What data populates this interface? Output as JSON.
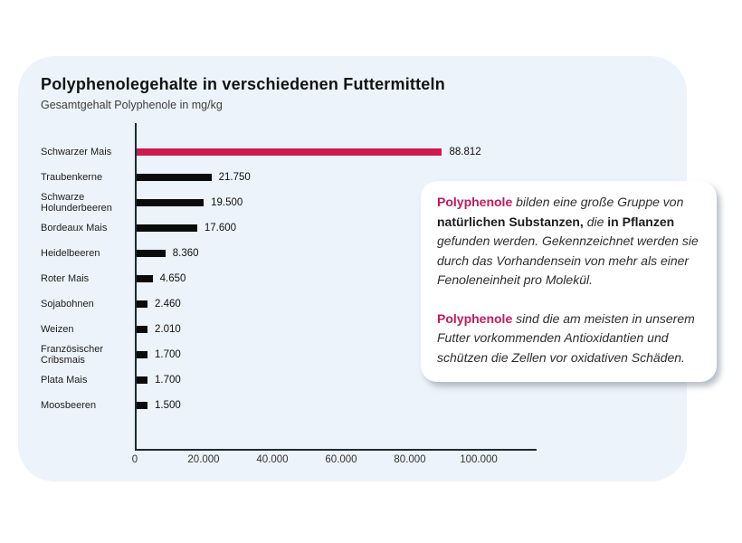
{
  "card": {
    "title": "Polyphenolegehalte in verschiedenen Futtermitteln",
    "subtitle": "Gesamtgehalt Polyphenole in mg/kg"
  },
  "colors": {
    "accent_bar": "#d01a4f",
    "bar": "#0b0b0b",
    "accent_text": "#c31a5e",
    "axis": "#1c2b36",
    "card_background": "#ecf3fa",
    "box_background": "#ffffff"
  },
  "chart_data": {
    "type": "bar",
    "orientation": "horizontal",
    "title": "Polyphenolegehalte in verschiedenen Futtermitteln",
    "subtitle": "Gesamtgehalt Polyphenole in mg/kg",
    "unit": "mg/kg",
    "categories": [
      "Schwarzer Mais",
      "Traubenkerne",
      "Schwarze\nHolunderbeeren",
      "Bordeaux Mais",
      "Heidelbeeren",
      "Roter Mais",
      "Sojabohnen",
      "Weizen",
      "Französischer\nCribsmais",
      "Plata Mais",
      "Moosbeeren"
    ],
    "values": [
      88812,
      21750,
      19500,
      17600,
      8360,
      4650,
      2460,
      2010,
      1700,
      1700,
      1500
    ],
    "value_labels": [
      "88.812",
      "21.750",
      "19.500",
      "17.600",
      "8.360",
      "4.650",
      "2.460",
      "2.010",
      "1.700",
      "1.700",
      "1.500"
    ],
    "highlight_index": 0,
    "xlim": [
      0,
      100000
    ],
    "x_ticks": [
      "0",
      "20.000",
      "40.000",
      "60.000",
      "80.000",
      "100.000"
    ],
    "x_tick_values": [
      0,
      20000,
      40000,
      60000,
      80000,
      100000
    ],
    "grid": false,
    "legend": false
  },
  "info_box": {
    "paragraphs": [
      {
        "segments": [
          {
            "text": "Polyphenole",
            "style": "accent"
          },
          {
            "text": " bilden eine große Gruppe von ",
            "style": "italic"
          },
          {
            "text": "natürlichen Substanzen,",
            "style": "bold"
          },
          {
            "text": " die ",
            "style": "italic"
          },
          {
            "text": "in Pflanzen",
            "style": "bold"
          },
          {
            "text": " gefunden werden. Gekennzeichnet werden sie durch das Vorhandensein von mehr als einer Fenoleneinheit pro Molekül.",
            "style": "italic"
          }
        ]
      },
      {
        "segments": [
          {
            "text": "Polyphenole",
            "style": "accent"
          },
          {
            "text": " sind die am meisten in unserem Futter vorkommenden Antioxidantien und schützen die Zellen vor oxidativen Schäden.",
            "style": "italic"
          }
        ]
      }
    ]
  }
}
